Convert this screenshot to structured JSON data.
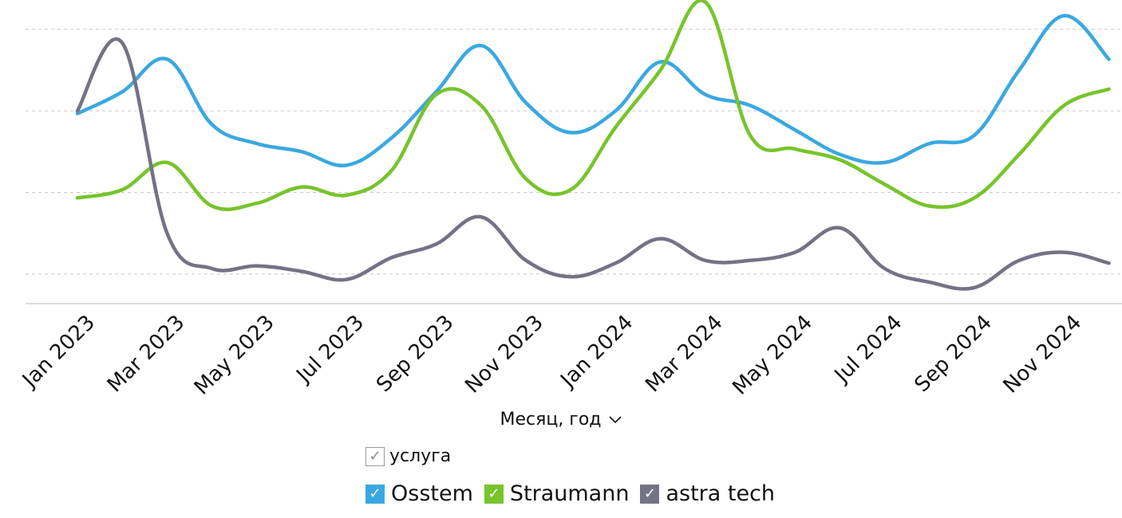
{
  "colors": {
    "osstem": "#3aa8e0",
    "straumann": "#77c42c",
    "astra": "#747385",
    "grid": "#c8c8c8",
    "axis": "#cfcfcf"
  },
  "x_axis": {
    "title": "Месяц, год",
    "chevron": "chevron-down-icon"
  },
  "legend": {
    "title": "услуга",
    "check_glyph": "✓",
    "items": [
      {
        "label": "Osstem",
        "color": "#3aa8e0"
      },
      {
        "label": "Straumann",
        "color": "#77c42c"
      },
      {
        "label": "astra tech",
        "color": "#747385"
      }
    ]
  },
  "chart_data": {
    "type": "line",
    "x": [
      "Jan 2023",
      "Feb 2023",
      "Mar 2023",
      "Apr 2023",
      "May 2023",
      "Jun 2023",
      "Jul 2023",
      "Aug 2023",
      "Sep 2023",
      "Oct 2023",
      "Nov 2023",
      "Dec 2023",
      "Jan 2024",
      "Feb 2024",
      "Mar 2024",
      "Apr 2024",
      "May 2024",
      "Jun 2024",
      "Jul 2024",
      "Aug 2024",
      "Sep 2024",
      "Oct 2024",
      "Nov 2024",
      "Dec 2024"
    ],
    "tick_labels": [
      "Jan 2023",
      "Mar 2023",
      "May 2023",
      "Jul 2023",
      "Sep 2023",
      "Nov 2023",
      "Jan 2024",
      "Mar 2024",
      "May 2024",
      "Jul 2024",
      "Sep 2024",
      "Nov 2024"
    ],
    "ylim": [
      0,
      10.9
    ],
    "grid": true,
    "y_tick_labels_shown": false,
    "gridlines": [
      1,
      4,
      7,
      10
    ],
    "series": [
      {
        "name": "Osstem",
        "values": [
          6.9,
          7.7,
          8.9,
          6.5,
          5.8,
          5.5,
          5.0,
          6.0,
          7.7,
          9.4,
          7.3,
          6.2,
          7.0,
          8.8,
          7.6,
          7.2,
          6.3,
          5.4,
          5.1,
          5.8,
          6.1,
          8.5,
          10.5,
          8.9
        ]
      },
      {
        "name": "Straumann",
        "values": [
          3.8,
          4.1,
          5.1,
          3.5,
          3.6,
          4.2,
          3.9,
          4.8,
          7.6,
          7.2,
          4.5,
          4.1,
          6.4,
          8.5,
          11.0,
          6.1,
          5.6,
          5.2,
          4.3,
          3.5,
          3.8,
          5.4,
          7.2,
          7.8
        ]
      },
      {
        "name": "astra tech",
        "values": [
          7.0,
          9.5,
          2.5,
          1.2,
          1.3,
          1.1,
          0.8,
          1.6,
          2.1,
          3.1,
          1.5,
          0.9,
          1.4,
          2.3,
          1.5,
          1.5,
          1.8,
          2.7,
          1.2,
          0.7,
          0.5,
          1.5,
          1.8,
          1.4
        ]
      }
    ]
  }
}
